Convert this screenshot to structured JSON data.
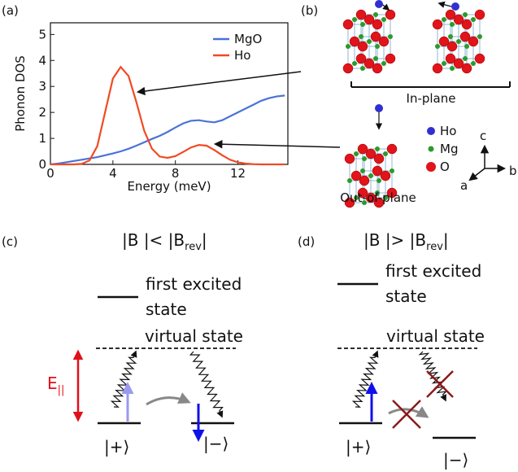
{
  "panel_labels": [
    "(a)",
    "(b)",
    "(c)",
    "(d)"
  ],
  "chart_data": {
    "type": "line",
    "xlabel": "Energy (meV)",
    "ylabel": "Phonon DOS",
    "x": [
      0,
      0.5,
      1,
      1.5,
      2,
      2.5,
      3,
      3.5,
      4,
      4.5,
      5,
      5.5,
      6,
      6.5,
      7,
      7.5,
      8,
      8.5,
      9,
      9.5,
      10,
      10.5,
      11,
      11.5,
      12,
      12.5,
      13,
      13.5,
      14,
      14.5,
      15
    ],
    "series": [
      {
        "name": "MgO",
        "color": "#4a72d8",
        "values": [
          0,
          0.03,
          0.08,
          0.13,
          0.18,
          0.23,
          0.28,
          0.35,
          0.42,
          0.5,
          0.6,
          0.72,
          0.85,
          0.98,
          1.1,
          1.25,
          1.42,
          1.58,
          1.68,
          1.7,
          1.65,
          1.62,
          1.7,
          1.85,
          2.0,
          2.15,
          2.3,
          2.45,
          2.55,
          2.62,
          2.65
        ]
      },
      {
        "name": "Ho",
        "color": "#f04a24",
        "values": [
          0,
          0,
          0,
          0,
          0.02,
          0.15,
          0.7,
          2.0,
          3.3,
          3.75,
          3.4,
          2.4,
          1.3,
          0.6,
          0.3,
          0.25,
          0.32,
          0.48,
          0.65,
          0.75,
          0.72,
          0.55,
          0.35,
          0.18,
          0.08,
          0.03,
          0.01,
          0,
          0,
          0,
          0
        ]
      }
    ],
    "xlim": [
      0,
      15.2
    ],
    "xticks": [
      0,
      4,
      8,
      12
    ],
    "ylim": [
      0,
      5.45
    ],
    "yticks": [
      0,
      1,
      2,
      3,
      4,
      5
    ],
    "legend": "upper right"
  },
  "crystal": {
    "in_plane": "In-plane",
    "out_of_plane": "Out-of-plane",
    "legend": [
      "Ho",
      "Mg",
      "O"
    ],
    "axes": [
      "c",
      "a",
      "b"
    ]
  },
  "levels": [
    {
      "cond": [
        "|B |< |B",
        "rev",
        "|"
      ],
      "excited": [
        "first excited",
        "state"
      ],
      "virtual": "virtual state",
      "ground": "|+⟩",
      "final": "|−⟩"
    },
    {
      "cond": [
        "|B |> |B",
        "rev",
        "|"
      ],
      "excited": [
        "first excited",
        "state"
      ],
      "virtual": "virtual state",
      "ground": "|+⟩",
      "final": "|−⟩"
    }
  ],
  "field": [
    "E",
    "||"
  ]
}
